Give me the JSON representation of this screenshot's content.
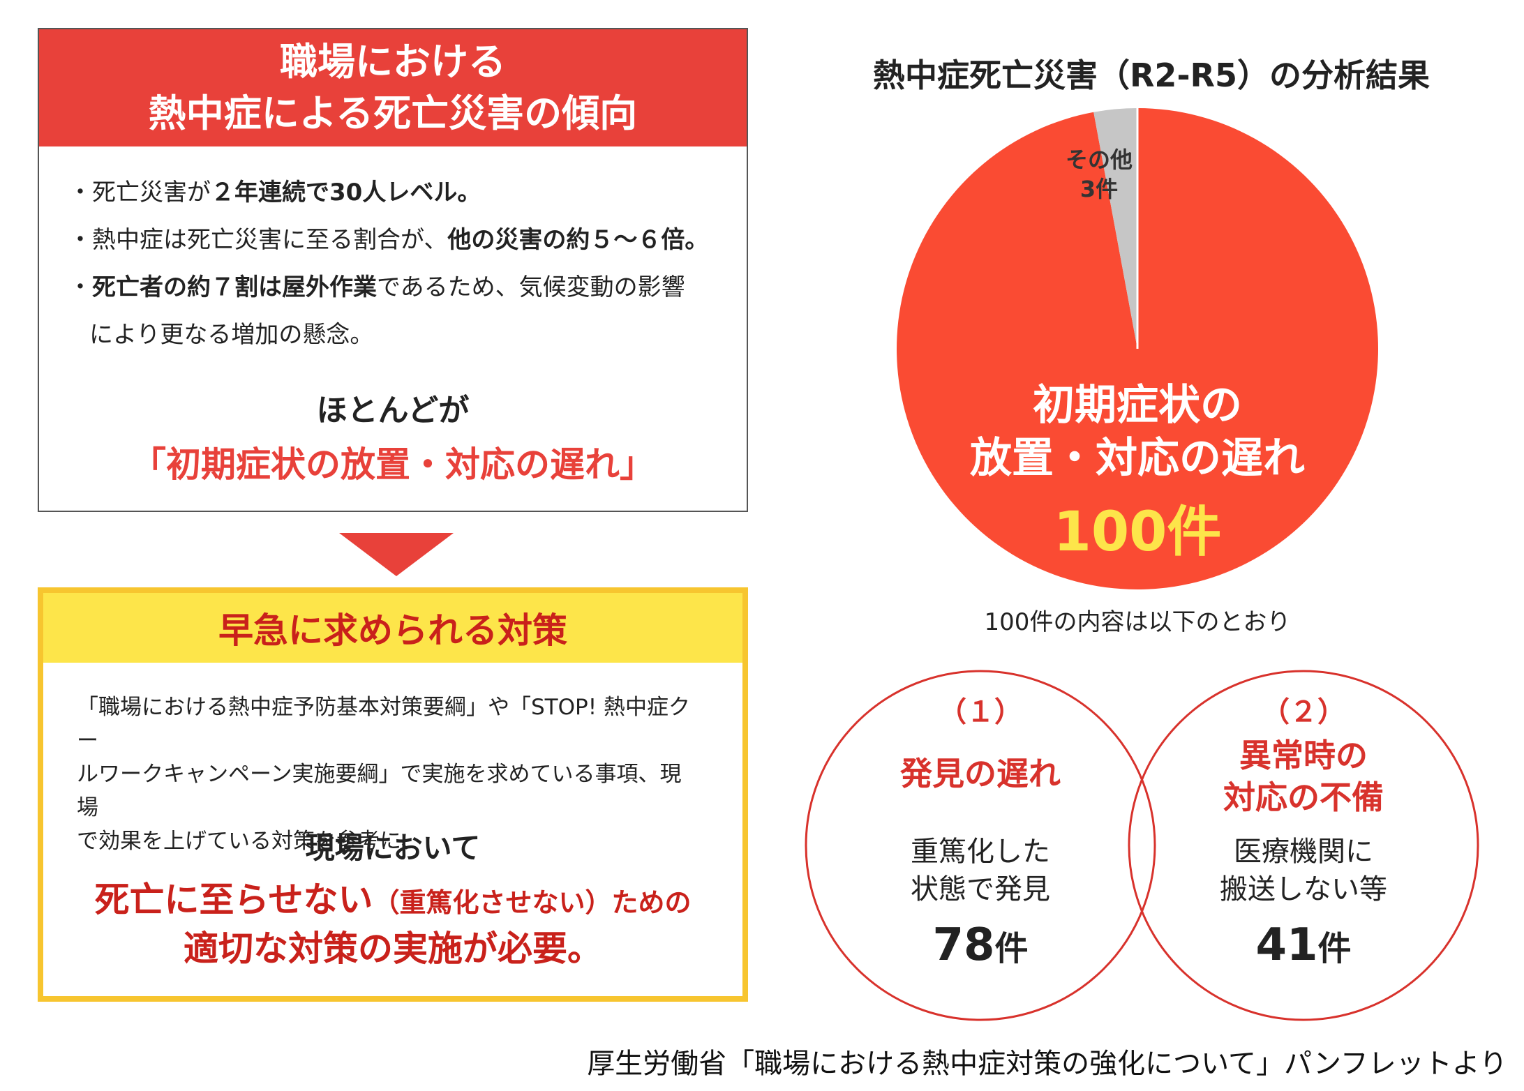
{
  "trend": {
    "title_line1": "職場における",
    "title_line2": "熱中症による死亡災害の傾向",
    "bullets": [
      {
        "prefix": "・死亡災害が",
        "bold": "２年連続で30人レベル。",
        "suffix": ""
      },
      {
        "prefix": "・熱中症は死亡災害に至る割合が、",
        "bold": "他の災害の約５～６倍。",
        "suffix": ""
      },
      {
        "prefix": "・",
        "bold": "死亡者の約７割は屋外作業",
        "suffix": "であるため、気候変動の影響"
      },
      {
        "prefix": "",
        "bold": "",
        "suffix": "により更なる増加の懸念。"
      }
    ],
    "conclusion_line1": "ほとんどが",
    "conclusion_line2": "「初期症状の放置・対応の遅れ」"
  },
  "measures": {
    "title": "早急に求められる対策",
    "body_lines": [
      "「職場における熱中症予防基本対策要綱」や「STOP! 熱中症クー",
      "ルワークキャンペーン実施要綱」で実施を求めている事項、現場",
      "で効果を上げている対策を参考に、"
    ],
    "local": "現場において",
    "need_line1_a": "死亡に至らせない",
    "need_line1_b": "（重篤化させない）",
    "need_line1_c": "ための",
    "need_line2": "適切な対策の実施が必要。"
  },
  "chart_data": {
    "type": "pie",
    "title": "熱中症死亡災害（R2-R5）の分析結果",
    "slices": [
      {
        "label_line1": "初期症状の",
        "label_line2": "放置・対応の遅れ",
        "value": 100,
        "value_label": "100件",
        "color": "#fa4b33"
      },
      {
        "label": "その他",
        "value": 3,
        "value_label": "3件",
        "color": "#c6c6c6"
      }
    ]
  },
  "breakdown": {
    "caption": "100件の内容は以下のとおり",
    "items": [
      {
        "number": "（１）",
        "head_lines": [
          "発見の遅れ"
        ],
        "desc_lines": [
          "重篤化した",
          "状態で発見"
        ],
        "count": "78",
        "unit": "件"
      },
      {
        "number": "（２）",
        "head_lines": [
          "異常時の",
          "対応の不備"
        ],
        "desc_lines": [
          "医療機関に",
          "搬送しない等"
        ],
        "count": "41",
        "unit": "件"
      }
    ]
  },
  "source": "厚生労働省「職場における熱中症対策の強化について」パンフレットより",
  "colors": {
    "accent_red": "#e8413a",
    "deep_red": "#c9211b",
    "yellow_border": "#f7c52f",
    "yellow_fill": "#fde54a",
    "pie_red": "#fa4b33",
    "pie_gray": "#c6c6c6"
  }
}
